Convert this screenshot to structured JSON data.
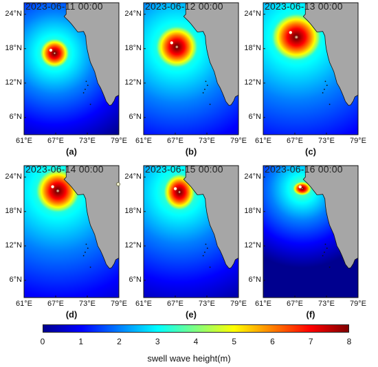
{
  "panels": [
    {
      "id": "a",
      "timestamp": "2023-06-11 00:00",
      "label": "(a)",
      "max_swell_m": 7.8
    },
    {
      "id": "b",
      "timestamp": "2023-06-12 00:00",
      "label": "(b)",
      "max_swell_m": 7.5
    },
    {
      "id": "c",
      "timestamp": "2023-06-13 00:00",
      "label": "(c)",
      "max_swell_m": 7.6
    },
    {
      "id": "d",
      "timestamp": "2023-06-14 00:00",
      "label": "(d)",
      "max_swell_m": 7.6
    },
    {
      "id": "e",
      "timestamp": "2023-06-15 00:00",
      "label": "(e)",
      "max_swell_m": 7.4
    },
    {
      "id": "f",
      "timestamp": "2023-06-16 00:00",
      "label": "(f)",
      "max_swell_m": 7.9
    }
  ],
  "axes": {
    "lat_labels": [
      "24°N",
      "18°N",
      "12°N",
      "6°N"
    ],
    "lon_labels": [
      "61°E",
      "67°E",
      "73°E",
      "79°E"
    ],
    "lat_range": [
      3,
      26
    ],
    "lon_range": [
      61,
      79
    ]
  },
  "colorbar": {
    "title": "swell wave height(m)",
    "ticks": [
      "0",
      "1",
      "2",
      "3",
      "4",
      "5",
      "6",
      "7",
      "8"
    ],
    "range": [
      0,
      8
    ],
    "colormap": "jet"
  },
  "colors": {
    "land": "#a6a6a6",
    "jet_stops": [
      "#00008f",
      "#0000ff",
      "#0080ff",
      "#00ffff",
      "#80ff80",
      "#ffff00",
      "#ff8000",
      "#ff0000",
      "#800000"
    ]
  }
}
